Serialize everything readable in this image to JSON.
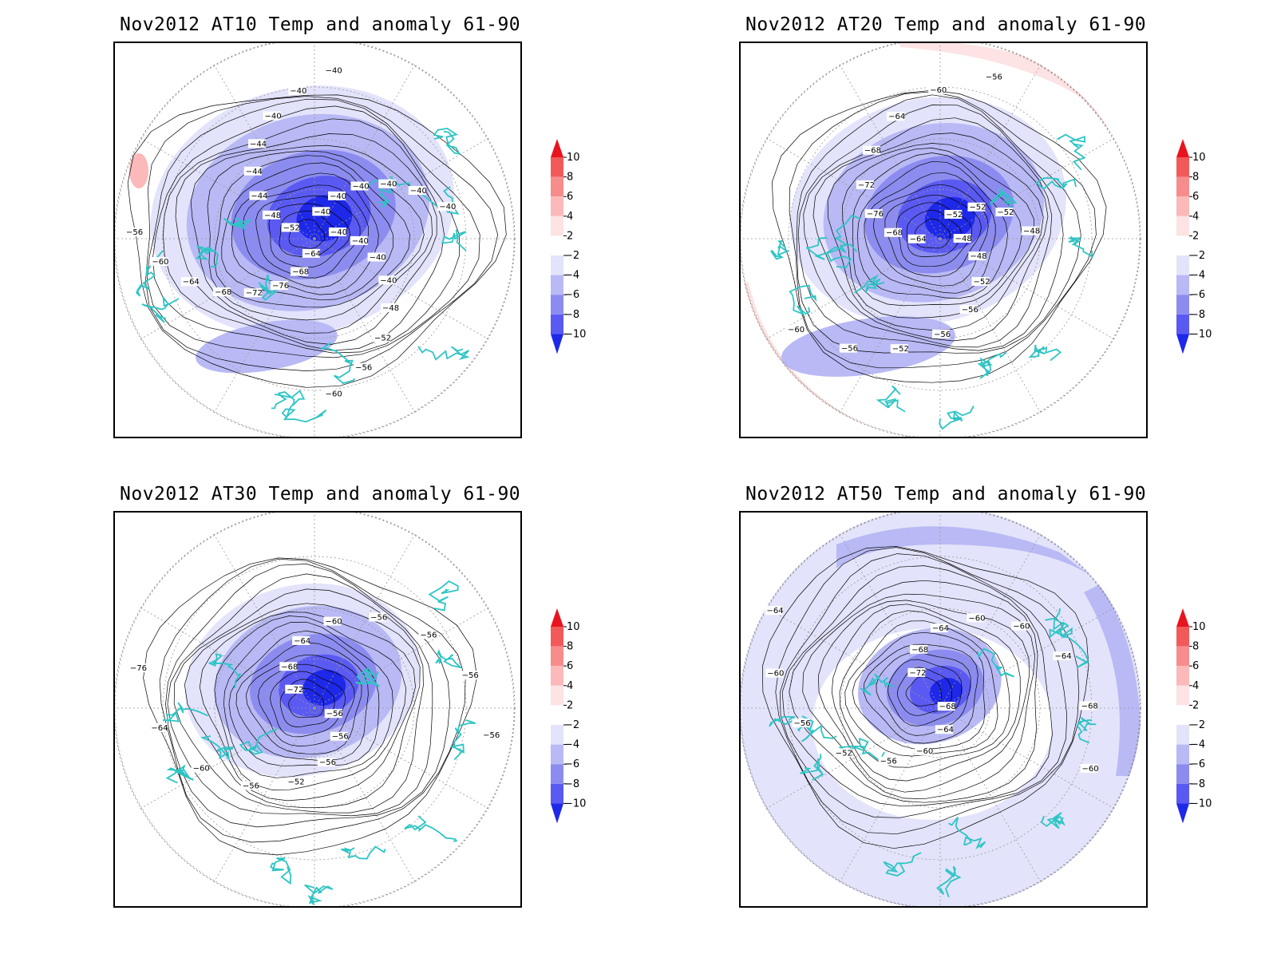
{
  "panels": [
    {
      "title": "Nov2012 AT10 Temp and anomaly 61-90",
      "contours": [
        "-40",
        "-40",
        "-40",
        "-40",
        "-48",
        "-52",
        "-56",
        "-60",
        "-64",
        "-68",
        "-76",
        "-72",
        "-68",
        "-64",
        "-60",
        "-56",
        "-52",
        "-48",
        "-44",
        "-44",
        "-44",
        "-40",
        "-40",
        "-40",
        "-40",
        "-40",
        "-40",
        "-40",
        "-40",
        "-40"
      ]
    },
    {
      "title": "Nov2012 AT20 Temp and anomaly 61-90",
      "contours": [
        "-48",
        "-48",
        "-52",
        "-56",
        "-56",
        "-52",
        "-56",
        "-60",
        "-64",
        "-68",
        "-76",
        "-72",
        "-68",
        "-64",
        "-60",
        "-56",
        "-52",
        "-52",
        "-52",
        "-48"
      ]
    },
    {
      "title": "Nov2012 AT30 Temp and anomaly 61-90",
      "contours": [
        "-56",
        "-56",
        "-56",
        "-52",
        "-56",
        "-60",
        "-64",
        "-76",
        "-72",
        "-68",
        "-64",
        "-60",
        "-56",
        "-56",
        "-56",
        "-56"
      ]
    },
    {
      "title": "Nov2012 AT50 Temp and anomaly 61-90",
      "contours": [
        "-68",
        "-64",
        "-60",
        "-56",
        "-52",
        "-56",
        "-60",
        "-64",
        "-72",
        "-68",
        "-64",
        "-60",
        "-60",
        "-64",
        "-68",
        "-60"
      ]
    }
  ],
  "colorbar": {
    "labels": [
      "10",
      "8",
      "6",
      "4",
      "2",
      "-2",
      "-4",
      "-6",
      "-8",
      "-10"
    ],
    "colors": [
      "#e8141e",
      "#f25a5a",
      "#f78c8c",
      "#fbb9b9",
      "#fde3e3",
      "#ffffff",
      "#e3e3fb",
      "#b9b9f5",
      "#8c8cf0",
      "#5a5af2",
      "#1e28e8"
    ]
  },
  "map_colors": {
    "coast": "#2ec4c4",
    "contour": "#000000",
    "grid": "#999999"
  }
}
